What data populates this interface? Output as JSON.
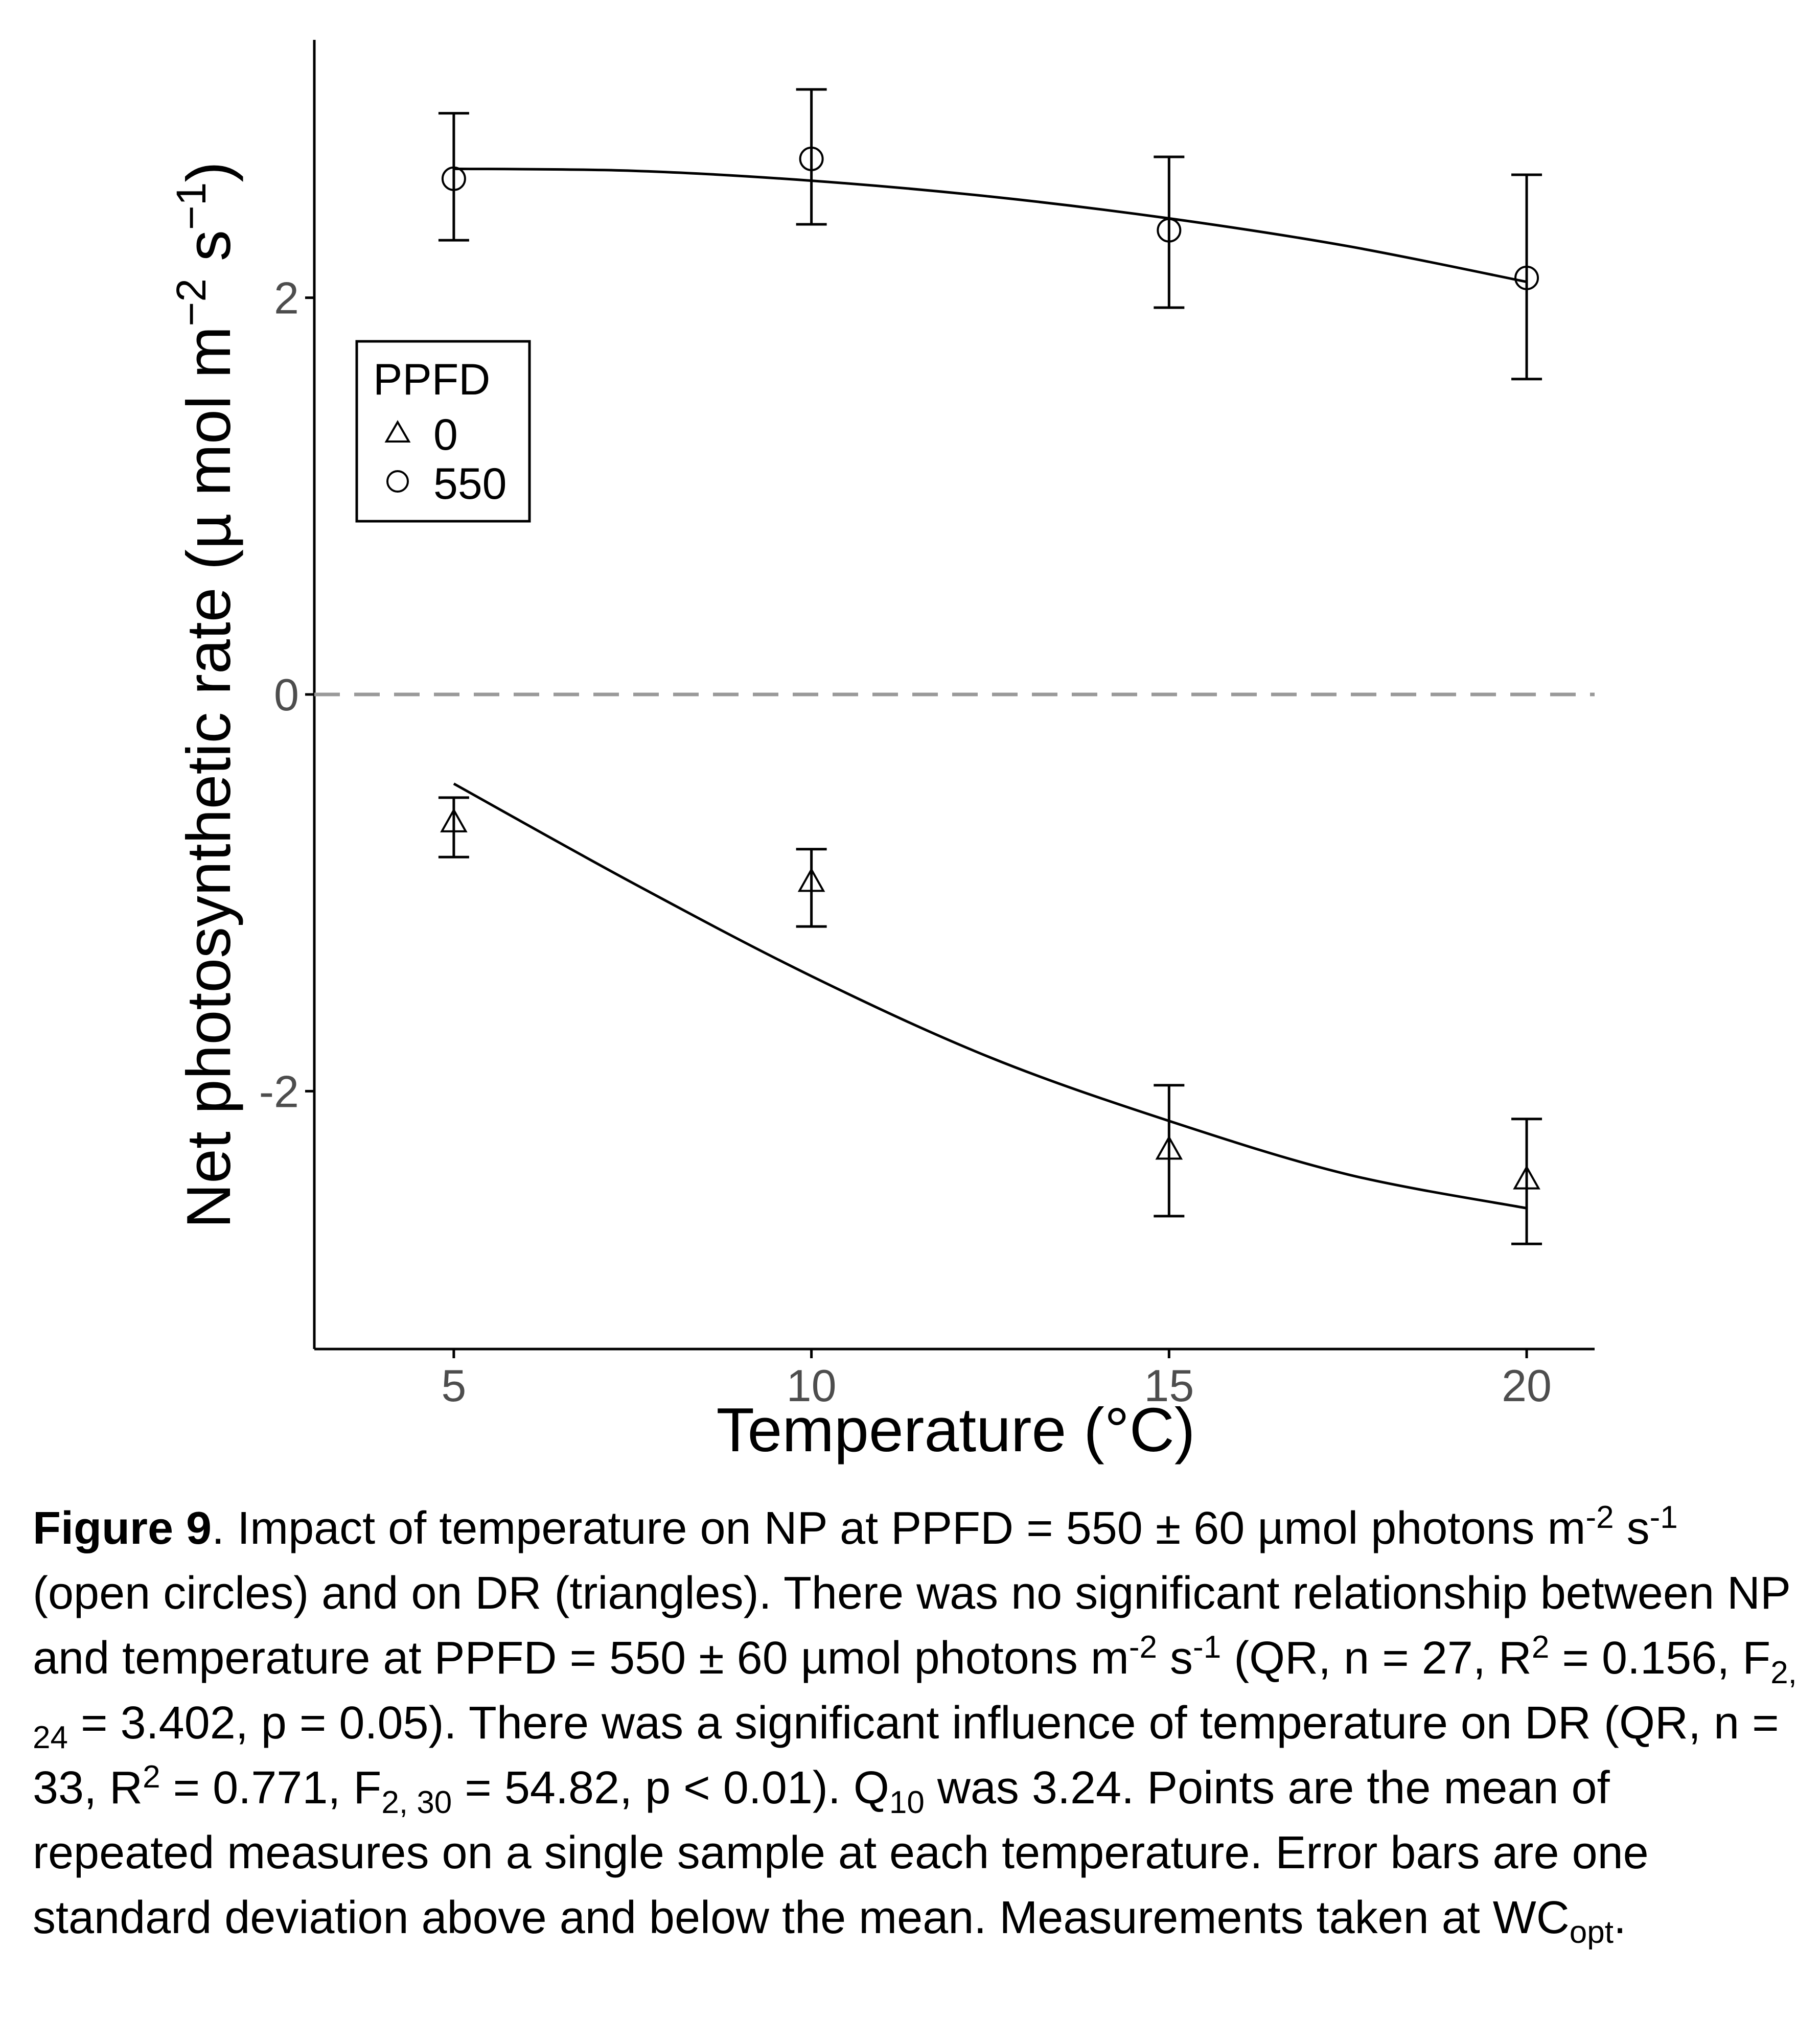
{
  "chart_data": {
    "type": "scatter",
    "xlabel": "Temperature (°C)",
    "ylabel_text": "Net photosynthetic rate (µ mol m",
    "ylabel_sup1": "−2",
    "ylabel_mid": " s",
    "ylabel_sup2": "−1",
    "ylabel_end": ")",
    "xlim": [
      3.05,
      20.95
    ],
    "ylim": [
      -3.3,
      3.3
    ],
    "x_ticks": [
      5,
      10,
      15,
      20
    ],
    "x_tick_labels": [
      "5",
      "10",
      "15",
      "20"
    ],
    "y_ticks": [
      -2,
      0,
      2
    ],
    "y_tick_labels": [
      "-2",
      "0",
      "2"
    ],
    "reference_line": {
      "y": 0,
      "style": "dashed",
      "color": "#999999"
    },
    "grid": false,
    "legend": {
      "title": "PPFD",
      "position": "top-left",
      "entries": [
        "0",
        "550"
      ]
    },
    "series": [
      {
        "name": "550",
        "marker": "circle",
        "x": [
          5,
          10,
          15,
          20
        ],
        "y": [
          2.6,
          2.7,
          2.34,
          2.1
        ],
        "y_err_low": [
          2.29,
          2.37,
          1.95,
          1.59
        ],
        "y_err_high": [
          2.93,
          3.05,
          2.71,
          2.62
        ],
        "fit_x": [
          5,
          7.5,
          10,
          12.5,
          15,
          17.5,
          20
        ],
        "fit_y": [
          2.65,
          2.64,
          2.59,
          2.51,
          2.4,
          2.26,
          2.08
        ]
      },
      {
        "name": "0",
        "marker": "triangle",
        "x": [
          5,
          10,
          15,
          20
        ],
        "y": [
          -0.65,
          -0.95,
          -2.3,
          -2.45
        ],
        "y_err_low": [
          -0.82,
          -1.17,
          -2.63,
          -2.77
        ],
        "y_err_high": [
          -0.52,
          -0.78,
          -1.97,
          -2.14
        ],
        "fit_x": [
          5,
          7.5,
          10,
          12.5,
          15,
          17.5,
          20
        ],
        "fit_y": [
          -0.45,
          -0.95,
          -1.42,
          -1.83,
          -2.15,
          -2.42,
          -2.59
        ]
      }
    ],
    "colors": {
      "line": "#000000",
      "axis": "#000000",
      "tick_label": "#4d4d4d",
      "zero_line": "#999999"
    }
  },
  "caption": {
    "label": "Figure 9",
    "s1": ". Impact of temperature on NP at PPFD = 550 ± 60 µmol photons m",
    "s1_sup": "-2",
    "s2": " s",
    "s2_sup": "-1",
    "s3": " (open circles) and on DR (triangles). There was no significant relationship between NP and temperature at PPFD = 550 ± 60 µmol photons m",
    "s3_sup": "-2",
    "s4": " s",
    "s4_sup": "-1",
    "s5": " (QR, n = 27, R",
    "s5_sup": "2",
    "s6": " = 0.156, F",
    "s6_sub": "2, 24",
    "s7": " = 3.402, p = 0.05). There was a significant influence of temperature on DR (QR, n = 33, R",
    "s7_sup": "2",
    "s8": " = 0.771, F",
    "s8_sub": "2, 30",
    "s9": " = 54.82, p < 0.01). Q",
    "s9_sub": "10",
    "s10": " was 3.24. Points are the mean of repeated measures on a single sample at each temperature. Error bars are one standard deviation above and below the mean. Measurements taken at WC",
    "s10_sub": "opt",
    "s11": "."
  }
}
